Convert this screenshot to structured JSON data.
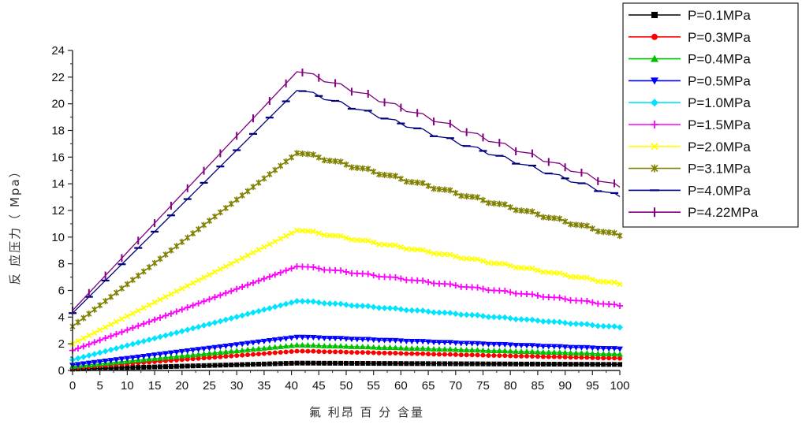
{
  "chart_data": {
    "type": "line",
    "xlabel": "氟 利昂 百 分 含量",
    "ylabel": "反 应压力（ Mpa）",
    "xlim": [
      0,
      100
    ],
    "ylim": [
      0,
      24
    ],
    "x_ticks": [
      0,
      5,
      10,
      15,
      20,
      25,
      30,
      35,
      40,
      45,
      50,
      55,
      60,
      65,
      70,
      75,
      80,
      85,
      90,
      95,
      100
    ],
    "y_ticks": [
      0,
      2,
      4,
      6,
      8,
      10,
      12,
      14,
      16,
      18,
      20,
      22,
      24
    ],
    "peak_x": 41,
    "legend_position": "top-right",
    "series": [
      {
        "name": "P=0.1MPa",
        "color": "#000000",
        "marker": "square",
        "start": 0.1,
        "peak": 0.55,
        "end": 0.45
      },
      {
        "name": "P=0.3MPa",
        "color": "#ff0000",
        "marker": "circle",
        "start": 0.2,
        "peak": 1.45,
        "end": 0.9
      },
      {
        "name": "P=0.4MPa",
        "color": "#00c000",
        "marker": "triangle-up",
        "start": 0.3,
        "peak": 1.9,
        "end": 1.2
      },
      {
        "name": "P=0.5MPa",
        "color": "#0000ff",
        "marker": "triangle-down",
        "start": 0.4,
        "peak": 2.5,
        "end": 1.6
      },
      {
        "name": "P=1.0MPa",
        "color": "#00e5ff",
        "marker": "diamond",
        "start": 0.8,
        "peak": 5.2,
        "end": 3.2
      },
      {
        "name": "P=1.5MPa",
        "color": "#ff00ff",
        "marker": "plus",
        "start": 1.5,
        "peak": 7.8,
        "end": 4.8
      },
      {
        "name": "P=2.0MPa",
        "color": "#ffff00",
        "marker": "x",
        "start": 2.0,
        "peak": 10.5,
        "end": 6.4
      },
      {
        "name": "P=3.1MPa",
        "color": "#808000",
        "marker": "star",
        "start": 3.3,
        "peak": 16.3,
        "end": 10.0
      },
      {
        "name": "P=4.0MPa",
        "color": "#000080",
        "marker": "dash",
        "start": 4.3,
        "peak": 21.0,
        "end": 12.9
      },
      {
        "name": "P=4.22MPa",
        "color": "#800080",
        "marker": "vbar",
        "start": 4.5,
        "peak": 22.4,
        "end": 13.6
      }
    ]
  }
}
